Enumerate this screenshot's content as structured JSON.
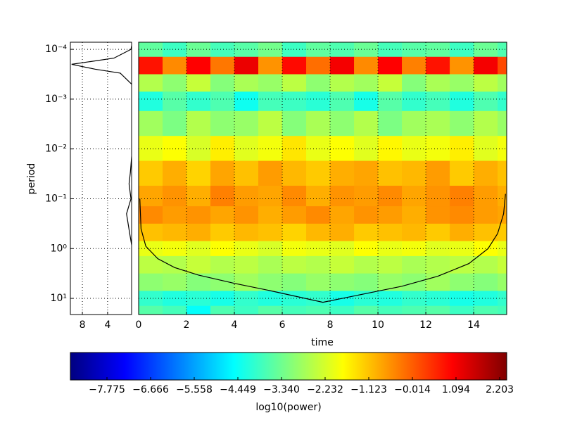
{
  "chart_data": [
    {
      "type": "heatmap",
      "xlabel": "time",
      "xlim": [
        0,
        15.38
      ],
      "xticks": [
        0,
        2,
        4,
        6,
        8,
        10,
        12,
        14
      ],
      "grid": true,
      "x": [
        0.5,
        1.5,
        2.5,
        3.5,
        4.5,
        5.5,
        6.5,
        7.5,
        8.5,
        9.5,
        10.5,
        11.5,
        12.5,
        13.5,
        14.5,
        15.5
      ],
      "y": [
        0.0001,
        0.0002,
        0.0005,
        0.001,
        0.003,
        0.01,
        0.03,
        0.1,
        0.2,
        0.5,
        1,
        2,
        5,
        10,
        20
      ],
      "z": [
        [
          -3.5,
          -3.9,
          -3.4,
          -3.8,
          -3.6,
          -3.3,
          -3.9,
          -3.5,
          -3.7,
          -3.4,
          -3.8,
          -3.6,
          -3.5,
          -3.9,
          -3.4,
          -3.7
        ],
        [
          0.8,
          -0.5,
          1.0,
          -0.3,
          1.2,
          -0.6,
          0.9,
          -0.2,
          1.1,
          -0.5,
          1.0,
          -0.4,
          0.8,
          -0.6,
          1.1,
          0.2
        ],
        [
          -2.6,
          -3.0,
          -2.4,
          -3.1,
          -2.7,
          -2.9,
          -2.5,
          -3.0,
          -2.6,
          -2.8,
          -2.4,
          -3.1,
          -2.7,
          -2.9,
          -2.5,
          -2.8
        ],
        [
          -4.2,
          -3.6,
          -4.0,
          -3.7,
          -4.4,
          -3.8,
          -3.9,
          -4.1,
          -3.7,
          -4.3,
          -3.6,
          -4.0,
          -3.8,
          -4.2,
          -3.7,
          -4.0
        ],
        [
          -2.8,
          -3.2,
          -2.6,
          -3.0,
          -2.9,
          -2.5,
          -3.1,
          -2.7,
          -3.0,
          -2.6,
          -3.2,
          -2.8,
          -2.7,
          -3.0,
          -2.6,
          -2.9
        ],
        [
          -2.0,
          -1.8,
          -2.2,
          -1.6,
          -2.1,
          -1.9,
          -1.5,
          -2.0,
          -1.8,
          -2.1,
          -1.7,
          -2.0,
          -1.9,
          -1.6,
          -2.1,
          -1.9
        ],
        [
          -1.2,
          -0.9,
          -1.3,
          -0.8,
          -1.1,
          -0.7,
          -1.0,
          -1.2,
          -0.9,
          -0.8,
          -1.1,
          -1.0,
          -0.7,
          -1.2,
          -0.9,
          -1.1
        ],
        [
          -0.8,
          -0.6,
          -0.9,
          -0.4,
          -0.7,
          -0.8,
          -0.5,
          -0.9,
          -0.6,
          -0.7,
          -0.5,
          -0.8,
          -0.6,
          -0.4,
          -0.7,
          -0.9
        ],
        [
          -0.5,
          -0.7,
          -0.6,
          -0.8,
          -0.6,
          -0.9,
          -0.7,
          -0.5,
          -0.8,
          -0.6,
          -0.7,
          -0.9,
          -0.6,
          -0.5,
          -0.7,
          -0.8
        ],
        [
          -1.1,
          -1.0,
          -0.9,
          -1.2,
          -1.0,
          -1.1,
          -1.3,
          -1.0,
          -0.9,
          -1.2,
          -1.1,
          -1.0,
          -1.2,
          -0.9,
          -1.1,
          -1.2
        ],
        [
          -2.0,
          -1.9,
          -2.1,
          -1.8,
          -2.0,
          -2.2,
          -1.9,
          -2.0,
          -2.1,
          -1.8,
          -2.0,
          -1.9,
          -2.1,
          -2.0,
          -1.8,
          -2.0
        ],
        [
          -2.5,
          -2.6,
          -2.4,
          -2.6,
          -2.5,
          -2.7,
          -2.5,
          -2.6,
          -2.4,
          -2.6,
          -2.5,
          -2.7,
          -2.6,
          -2.5,
          -2.6,
          -2.4
        ],
        [
          -3.0,
          -2.9,
          -3.1,
          -3.0,
          -2.8,
          -3.0,
          -3.1,
          -2.9,
          -3.0,
          -3.1,
          -2.9,
          -3.0,
          -2.8,
          -3.0,
          -3.1,
          -2.9
        ],
        [
          -4.0,
          -4.2,
          -4.1,
          -4.3,
          -4.0,
          -4.2,
          -4.1,
          -4.0,
          -4.3,
          -4.1,
          -4.2,
          -4.0,
          -4.1,
          -4.3,
          -4.2,
          -4.0
        ],
        [
          -3.6,
          -3.8,
          -4.5,
          -3.7,
          -3.9,
          -3.6,
          -3.8,
          -3.7,
          -3.9,
          -3.6,
          -3.8,
          -3.7,
          -3.6,
          -3.9,
          -3.7,
          -3.8
        ]
      ],
      "series": [
        {
          "color": "#000000",
          "x": [
            0.05,
            0.1,
            0.3,
            0.8,
            1.5,
            2.5,
            4,
            5.5,
            7.7,
            9.5,
            11,
            12.5,
            13.8,
            14.6,
            15.0,
            15.25,
            15.33
          ],
          "values": [
            0.1,
            0.4,
            0.9,
            1.6,
            2.4,
            3.4,
            5.0,
            7.0,
            12,
            8.0,
            5.7,
            3.6,
            2.0,
            1.0,
            0.5,
            0.2,
            0.08
          ]
        }
      ]
    },
    {
      "type": "line",
      "ylabel": "period",
      "ylog": true,
      "ylim": [
        21.1,
        7.2e-05
      ],
      "yticks": [
        {
          "value": 0.0001,
          "label": "10⁻⁴"
        },
        {
          "value": 0.001,
          "label": "10⁻³"
        },
        {
          "value": 0.01,
          "label": "10⁻²"
        },
        {
          "value": 0.1,
          "label": "10⁻¹"
        },
        {
          "value": 1,
          "label": "10⁰"
        },
        {
          "value": 10,
          "label": "10¹"
        }
      ],
      "xlim": [
        9.9,
        0.2
      ],
      "xticks": [
        8,
        4
      ],
      "grid": true,
      "series": [
        {
          "color": "#000000",
          "x": [
            0.1,
            0.3,
            3,
            9.7,
            6,
            2,
            0.2,
            0.05,
            0.1,
            0.4,
            0.6,
            0.3,
            1.0,
            0.5,
            0.1,
            0.05
          ],
          "values": [
            7.2e-05,
            0.0001,
            0.00015,
            0.0002,
            0.00025,
            0.0003,
            0.0005,
            0.001,
            0.01,
            0.03,
            0.05,
            0.1,
            0.2,
            0.5,
            1,
            21
          ]
        }
      ]
    },
    {
      "type": "colorbar",
      "label": "log10(power)",
      "clim": [
        -8.705,
        2.382
      ],
      "ticks": [
        {
          "value": -7.775,
          "label": "−7.775"
        },
        {
          "value": -6.666,
          "label": "−6.666"
        },
        {
          "value": -5.558,
          "label": "−5.558"
        },
        {
          "value": -4.449,
          "label": "−4.449"
        },
        {
          "value": -3.34,
          "label": "−3.340"
        },
        {
          "value": -2.232,
          "label": "−2.232"
        },
        {
          "value": -1.123,
          "label": "−1.123"
        },
        {
          "value": -0.014,
          "label": "−0.014"
        },
        {
          "value": 1.094,
          "label": "1.094"
        },
        {
          "value": 2.203,
          "label": "2.203"
        }
      ]
    }
  ]
}
